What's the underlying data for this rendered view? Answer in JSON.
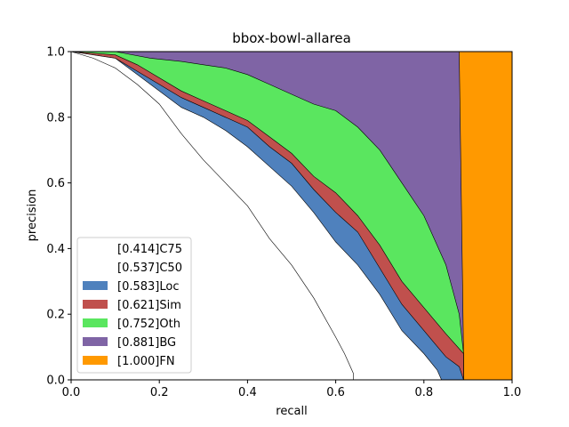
{
  "chart_data": {
    "type": "area",
    "title": "bbox-bowl-allarea",
    "xlabel": "recall",
    "ylabel": "precision",
    "xlim": [
      0,
      1
    ],
    "ylim": [
      0,
      1
    ],
    "x_ticks": [
      "0.0",
      "0.2",
      "0.4",
      "0.6",
      "0.8",
      "1.0"
    ],
    "y_ticks": [
      "0.0",
      "0.2",
      "0.4",
      "0.6",
      "0.8",
      "1.0"
    ],
    "grid": false,
    "legend_position": "lower-left",
    "series": [
      {
        "name": "[1.000]FN",
        "color": "#ff9900",
        "points": [
          [
            0,
            1
          ],
          [
            1,
            1
          ],
          [
            1,
            0
          ],
          [
            0,
            0
          ]
        ]
      },
      {
        "name": "[0.881]BG",
        "color": "#7f64a5",
        "points": [
          [
            0,
            1
          ],
          [
            0.88,
            1
          ],
          [
            0.89,
            0.08
          ],
          [
            0.89,
            0
          ],
          [
            0,
            0
          ]
        ]
      },
      {
        "name": "[0.752]Oth",
        "color": "#5ae65f",
        "points": [
          [
            0,
            1
          ],
          [
            0.1,
            1
          ],
          [
            0.18,
            0.98
          ],
          [
            0.25,
            0.97
          ],
          [
            0.3,
            0.96
          ],
          [
            0.35,
            0.95
          ],
          [
            0.4,
            0.93
          ],
          [
            0.45,
            0.9
          ],
          [
            0.5,
            0.87
          ],
          [
            0.55,
            0.84
          ],
          [
            0.6,
            0.82
          ],
          [
            0.65,
            0.77
          ],
          [
            0.7,
            0.7
          ],
          [
            0.75,
            0.6
          ],
          [
            0.8,
            0.5
          ],
          [
            0.85,
            0.35
          ],
          [
            0.88,
            0.2
          ],
          [
            0.89,
            0.08
          ],
          [
            0.89,
            0
          ],
          [
            0,
            0
          ]
        ]
      },
      {
        "name": "[0.621]Sim",
        "color": "#c0504d",
        "points": [
          [
            0,
            1
          ],
          [
            0.1,
            0.99
          ],
          [
            0.15,
            0.96
          ],
          [
            0.2,
            0.92
          ],
          [
            0.25,
            0.88
          ],
          [
            0.3,
            0.85
          ],
          [
            0.35,
            0.82
          ],
          [
            0.4,
            0.79
          ],
          [
            0.45,
            0.74
          ],
          [
            0.5,
            0.69
          ],
          [
            0.55,
            0.62
          ],
          [
            0.6,
            0.57
          ],
          [
            0.65,
            0.5
          ],
          [
            0.7,
            0.41
          ],
          [
            0.75,
            0.3
          ],
          [
            0.8,
            0.22
          ],
          [
            0.85,
            0.14
          ],
          [
            0.89,
            0.08
          ],
          [
            0.89,
            0
          ],
          [
            0,
            0
          ]
        ]
      },
      {
        "name": "[0.583]Loc",
        "color": "#4f81bd",
        "points": [
          [
            0,
            1
          ],
          [
            0.1,
            0.98
          ],
          [
            0.15,
            0.94
          ],
          [
            0.2,
            0.9
          ],
          [
            0.25,
            0.86
          ],
          [
            0.3,
            0.83
          ],
          [
            0.35,
            0.8
          ],
          [
            0.4,
            0.77
          ],
          [
            0.45,
            0.71
          ],
          [
            0.5,
            0.66
          ],
          [
            0.55,
            0.58
          ],
          [
            0.6,
            0.51
          ],
          [
            0.65,
            0.45
          ],
          [
            0.7,
            0.34
          ],
          [
            0.75,
            0.23
          ],
          [
            0.8,
            0.15
          ],
          [
            0.85,
            0.07
          ],
          [
            0.88,
            0.04
          ],
          [
            0.89,
            0
          ],
          [
            0,
            0
          ]
        ]
      },
      {
        "name": "[0.537]C50",
        "color": "#ffffff",
        "points": [
          [
            0,
            1
          ],
          [
            0.1,
            0.98
          ],
          [
            0.15,
            0.93
          ],
          [
            0.2,
            0.88
          ],
          [
            0.25,
            0.83
          ],
          [
            0.3,
            0.8
          ],
          [
            0.35,
            0.76
          ],
          [
            0.4,
            0.71
          ],
          [
            0.45,
            0.65
          ],
          [
            0.5,
            0.59
          ],
          [
            0.55,
            0.51
          ],
          [
            0.6,
            0.42
          ],
          [
            0.65,
            0.35
          ],
          [
            0.7,
            0.26
          ],
          [
            0.75,
            0.15
          ],
          [
            0.8,
            0.08
          ],
          [
            0.83,
            0.03
          ],
          [
            0.84,
            0
          ],
          [
            0,
            0
          ]
        ]
      },
      {
        "name": "[0.414]C75",
        "color": "#ffffff",
        "points": [
          [
            0,
            1
          ],
          [
            0.05,
            0.98
          ],
          [
            0.1,
            0.95
          ],
          [
            0.15,
            0.9
          ],
          [
            0.2,
            0.84
          ],
          [
            0.25,
            0.75
          ],
          [
            0.3,
            0.67
          ],
          [
            0.35,
            0.6
          ],
          [
            0.4,
            0.53
          ],
          [
            0.45,
            0.43
          ],
          [
            0.5,
            0.35
          ],
          [
            0.55,
            0.25
          ],
          [
            0.6,
            0.13
          ],
          [
            0.62,
            0.08
          ],
          [
            0.64,
            0.02
          ],
          [
            0.64,
            0
          ],
          [
            0,
            0
          ]
        ]
      }
    ]
  }
}
